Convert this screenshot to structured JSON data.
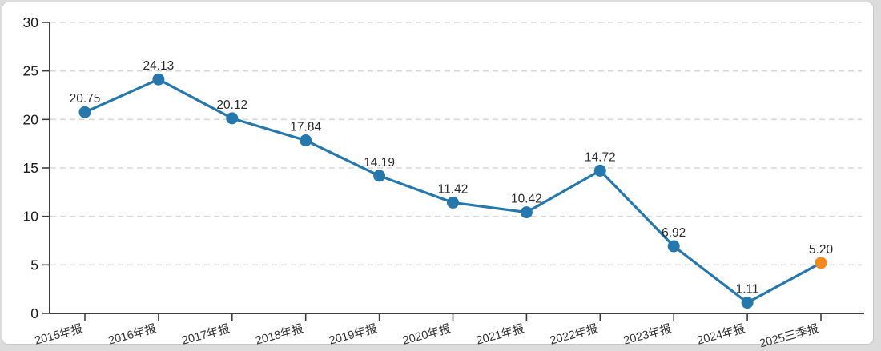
{
  "page": {
    "background_color": "#dcdcdc",
    "card_background": "#ffffff",
    "card_border_color": "#c9c9c9"
  },
  "chart_data": {
    "type": "line",
    "title": "",
    "xlabel": "",
    "ylabel": "",
    "categories": [
      "2015年报",
      "2016年报",
      "2017年报",
      "2018年报",
      "2019年报",
      "2020年报",
      "2021年报",
      "2022年报",
      "2023年报",
      "2024年报",
      "2025三季报"
    ],
    "values": [
      20.75,
      24.13,
      20.12,
      17.84,
      14.19,
      11.42,
      10.42,
      14.72,
      6.92,
      1.11,
      5.2
    ],
    "value_labels": [
      "20.75",
      "24.13",
      "20.12",
      "17.84",
      "14.19",
      "11.42",
      "10.42",
      "14.72",
      "6.92",
      "1.11",
      "5.20"
    ],
    "ylim": [
      0,
      30
    ],
    "yticks": [
      0,
      5,
      10,
      15,
      20,
      25,
      30
    ],
    "grid": "horizontal-dashed",
    "legend": "none",
    "colors": {
      "line": "#2478ad",
      "marker": "#2478ad",
      "last_marker_highlight": "#f28a1f",
      "gridline": "#d8d8d8",
      "axis": "#3f3f3f",
      "tick_label": "#1a1a1a",
      "category_label": "#333333",
      "data_label": "#2b2b2b"
    }
  }
}
